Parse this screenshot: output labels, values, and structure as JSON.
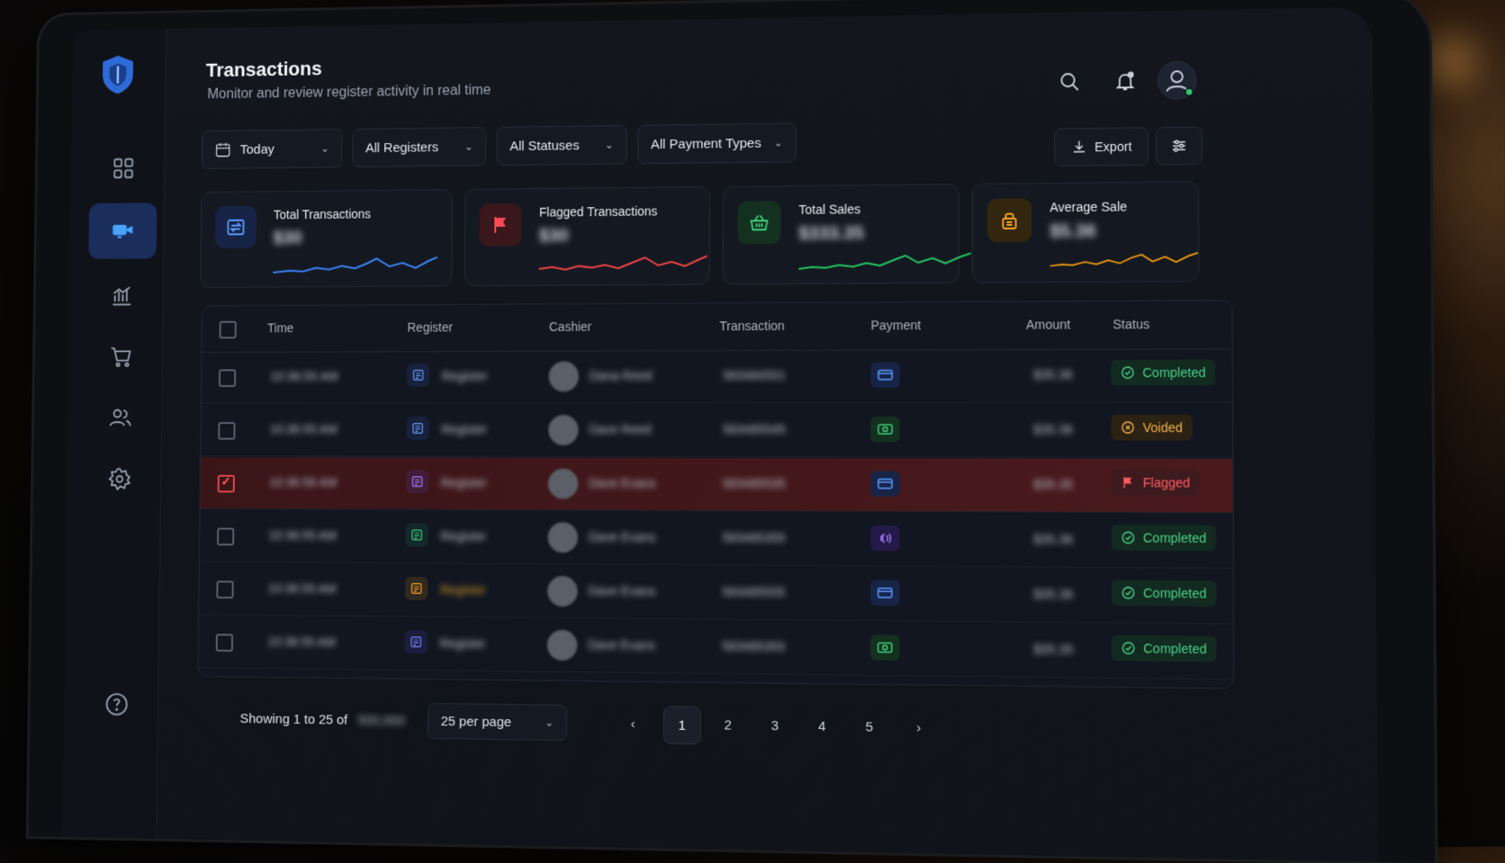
{
  "header": {
    "title": "Transactions",
    "subtitle": "Monitor and review register activity in real time"
  },
  "filters": [
    {
      "label": "Today",
      "icon": "calendar-icon"
    },
    {
      "label": "All Registers"
    },
    {
      "label": "All Statuses"
    },
    {
      "label": "All Payment Types"
    }
  ],
  "actions": {
    "export_label": "Export"
  },
  "cards": [
    {
      "label": "Total Transactions",
      "value": "$30",
      "accent": "#3b82f6"
    },
    {
      "label": "Flagged Transactions",
      "value": "$30",
      "accent": "#ef4444"
    },
    {
      "label": "Total Sales",
      "value": "$333.35",
      "accent": "#22c55e"
    },
    {
      "label": "Average Sale",
      "value": "$5.36",
      "accent": "#f59e0b"
    }
  ],
  "table": {
    "columns": [
      "Time",
      "Register",
      "Cashier",
      "Transaction",
      "Payment",
      "Amount",
      "Status"
    ],
    "rows": [
      {
        "time": "10:36:55 AM",
        "register": "Register",
        "cashier": "Dana Reed",
        "transaction": "583484551",
        "payment": "card",
        "amount": "$35.36",
        "status": "Completed",
        "checked": false
      },
      {
        "time": "10:36:55 AM",
        "register": "Register",
        "cashier": "Dave Reed",
        "transaction": "583485545",
        "payment": "cash",
        "amount": "$35.36",
        "status": "Voided",
        "checked": false
      },
      {
        "time": "10:36:56 AM",
        "register": "Register",
        "cashier": "Dave Evans",
        "transaction": "583485535",
        "payment": "card",
        "amount": "$35.35",
        "status": "Flagged",
        "checked": true
      },
      {
        "time": "10:36:55 AM",
        "register": "Register",
        "cashier": "Dave Evans",
        "transaction": "583485355",
        "payment": "contactless",
        "amount": "$35.36",
        "status": "Completed",
        "checked": false
      },
      {
        "time": "10:36:55 AM",
        "register": "Register",
        "cashier": "Dave Evans",
        "transaction": "583485555",
        "payment": "card",
        "amount": "$35.36",
        "status": "Completed",
        "checked": false
      },
      {
        "time": "10:36:55 AM",
        "register": "Register",
        "cashier": "Dave Evans",
        "transaction": "583485355",
        "payment": "cash",
        "amount": "$35.35",
        "status": "Completed",
        "checked": false
      }
    ]
  },
  "footer": {
    "showing": "Showing 1 to 25 of",
    "total": "500,000",
    "per_page": "25 per page",
    "pages": [
      "1",
      "2",
      "3",
      "4",
      "5"
    ],
    "current_page": "1"
  },
  "colors": {
    "completed": "#48d18a",
    "voided": "#f0b24a",
    "flagged": "#ff5b62",
    "accent_blue": "#3b82f6"
  }
}
